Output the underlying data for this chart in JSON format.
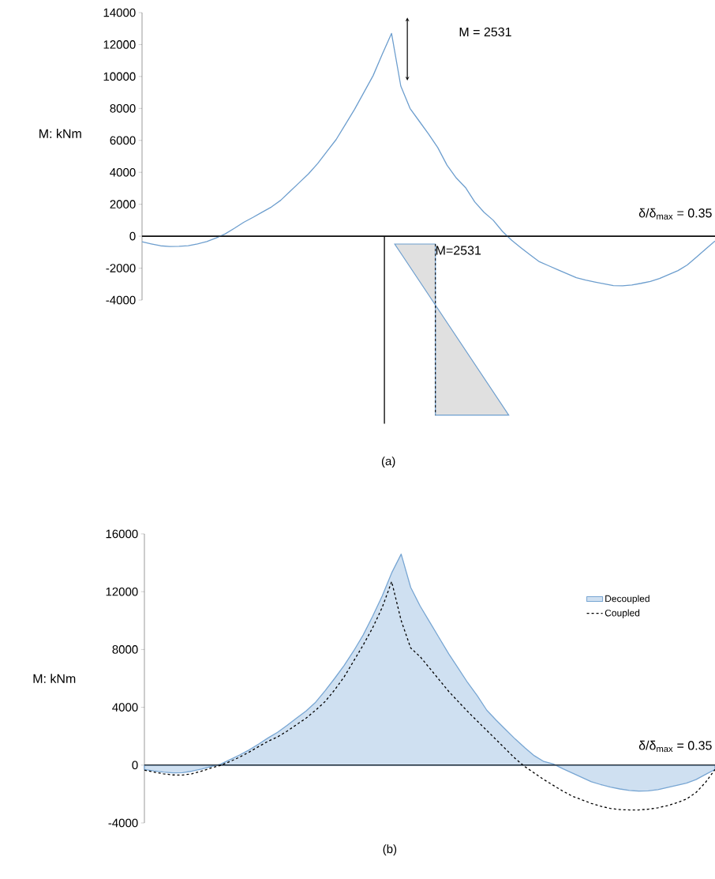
{
  "chart_data": [
    {
      "type": "line",
      "title": "(a)",
      "ylabel": "M: kNm",
      "color": "#6d9ece",
      "categories": [
        null,
        null,
        null,
        null,
        null,
        null,
        null,
        null,
        null,
        null,
        null,
        null,
        null,
        null,
        null,
        null,
        null,
        null,
        null,
        null,
        null,
        null,
        null,
        null,
        null,
        null,
        null,
        null,
        null,
        null,
        null,
        null,
        null,
        null,
        null,
        null,
        null,
        null,
        null,
        null,
        null,
        null,
        null,
        null,
        null,
        null,
        null,
        null,
        null,
        null,
        null,
        null,
        null,
        null,
        null,
        null,
        null,
        null,
        null,
        null,
        null,
        null,
        null
      ],
      "values": [
        -350,
        -480,
        -600,
        -640,
        -630,
        -590,
        -480,
        -330,
        -110,
        150,
        500,
        870,
        1180,
        1510,
        1830,
        2250,
        2800,
        3350,
        3900,
        4550,
        5300,
        6050,
        7000,
        7950,
        9000,
        10050,
        11400,
        12700,
        9400,
        8000,
        7200,
        6400,
        5550,
        4450,
        3650,
        3050,
        2150,
        1500,
        1000,
        300,
        -250,
        -720,
        -1170,
        -1600,
        -1850,
        -2100,
        -2350,
        -2600,
        -2750,
        -2870,
        -2980,
        -3090,
        -3100,
        -3050,
        -2950,
        -2830,
        -2650,
        -2400,
        -2150,
        -1800,
        -1300,
        -800,
        -300
      ],
      "ylim": [
        -4000,
        14000
      ],
      "yticks": [
        -4000,
        -2000,
        0,
        2000,
        4000,
        6000,
        8000,
        10000,
        12000,
        14000
      ],
      "tick_labels": "y",
      "annotations": [
        "M = 2531",
        "M=2531",
        "δ/δ$_{max}$ = 0.35"
      ]
    },
    {
      "type": "line",
      "title": "(b)",
      "ylabel": "M: kNm",
      "legend": "right",
      "categories": [
        null,
        null,
        null,
        null,
        null,
        null,
        null,
        null,
        null,
        null,
        null,
        null,
        null,
        null,
        null,
        null,
        null,
        null,
        null,
        null,
        null,
        null,
        null,
        null,
        null,
        null,
        null,
        null,
        null,
        null,
        null,
        null,
        null,
        null,
        null,
        null,
        null,
        null,
        null,
        null,
        null,
        null,
        null,
        null,
        null,
        null,
        null,
        null,
        null,
        null,
        null,
        null,
        null,
        null,
        null,
        null,
        null,
        null,
        null,
        null,
        null
      ],
      "series": [
        {
          "name": "Decoupled",
          "type": "area",
          "color": "#cfe0f1",
          "values": [
            -300,
            -400,
            -480,
            -540,
            -520,
            -420,
            -280,
            -100,
            60,
            380,
            700,
            1050,
            1450,
            1880,
            2270,
            2750,
            3250,
            3750,
            4350,
            5150,
            6000,
            6900,
            7900,
            9000,
            10300,
            11700,
            13300,
            14600,
            12300,
            11000,
            9900,
            8800,
            7700,
            6700,
            5700,
            4800,
            3800,
            3100,
            2450,
            1800,
            1200,
            650,
            250,
            80,
            -250,
            -550,
            -850,
            -1150,
            -1350,
            -1520,
            -1650,
            -1750,
            -1800,
            -1780,
            -1700,
            -1550,
            -1400,
            -1250,
            -1000,
            -650,
            -300
          ]
        },
        {
          "name": "Coupled",
          "type": "line",
          "line_style": "dashed",
          "color": "#000000",
          "values": [
            -350,
            -480,
            -600,
            -680,
            -690,
            -600,
            -420,
            -200,
            -20,
            250,
            550,
            900,
            1280,
            1650,
            1950,
            2350,
            2800,
            3250,
            3800,
            4400,
            5200,
            6100,
            7200,
            8300,
            9500,
            10900,
            12700,
            10000,
            8100,
            7500,
            6700,
            5900,
            5100,
            4400,
            3700,
            3050,
            2400,
            1750,
            1100,
            450,
            -100,
            -550,
            -1000,
            -1400,
            -1800,
            -2150,
            -2400,
            -2650,
            -2850,
            -3000,
            -3080,
            -3100,
            -3100,
            -3050,
            -2950,
            -2800,
            -2600,
            -2350,
            -1900,
            -1200,
            -300
          ]
        }
      ],
      "ylim": [
        -4000,
        16000
      ],
      "yticks": [
        -4000,
        0,
        4000,
        8000,
        12000,
        16000
      ],
      "tick_labels": "y",
      "annotations": [
        "δ/δ$_{max}$ = 0.35"
      ]
    }
  ]
}
